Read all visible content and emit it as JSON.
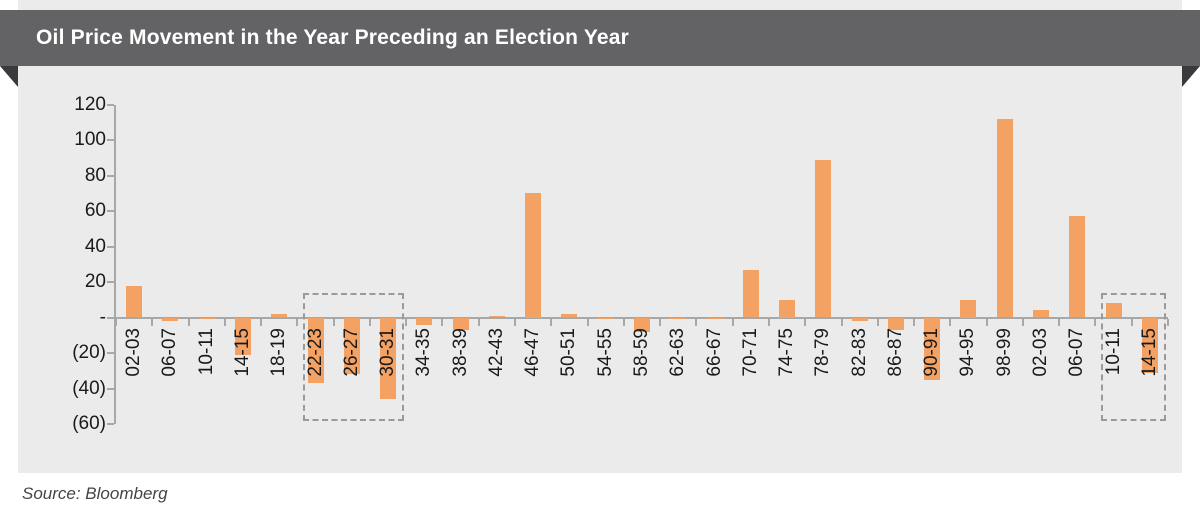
{
  "banner": {
    "title": "Oil Price Movement in the Year Preceding an Election Year"
  },
  "source": {
    "text": "Source: Bloomberg"
  },
  "colors": {
    "bar": "#F4A264",
    "panel_bg": "#EBEBEB",
    "page_bg": "#FFFFFF",
    "banner_bg": "#636366",
    "banner_text": "#FFFFFF",
    "fold": "#3A3A3C",
    "axis": "#A8A8A8",
    "label": "#1A1A1A",
    "highlight_border": "#9A9A9A",
    "source_text": "#454545"
  },
  "chart_data": {
    "type": "bar",
    "title": "Oil Price Movement in the Year Preceding an Election Year",
    "xlabel": "",
    "ylabel": "",
    "grid": false,
    "legend": false,
    "ylim": [
      -60,
      120
    ],
    "ytick_step": 20,
    "yticks": [
      {
        "label": "120",
        "value": 120
      },
      {
        "label": "100",
        "value": 100
      },
      {
        "label": "80",
        "value": 80
      },
      {
        "label": "60",
        "value": 60
      },
      {
        "label": "40",
        "value": 40
      },
      {
        "label": "20",
        "value": 20
      },
      {
        "label": "-",
        "value": 0
      },
      {
        "label": "(20)",
        "value": -20
      },
      {
        "label": "(40)",
        "value": -40
      },
      {
        "label": "(60)",
        "value": -60
      }
    ],
    "categories": [
      "02-03",
      "06-07",
      "10-11",
      "14-15",
      "18-19",
      "22-23",
      "26-27",
      "30-31",
      "34-35",
      "38-39",
      "42-43",
      "46-47",
      "50-51",
      "54-55",
      "58-59",
      "62-63",
      "66-67",
      "70-71",
      "74-75",
      "78-79",
      "82-83",
      "86-87",
      "90-91",
      "94-95",
      "98-99",
      "02-03",
      "06-07",
      "10-11",
      "14-15"
    ],
    "values": [
      18,
      -2,
      0,
      -21,
      2,
      -37,
      -32,
      -46,
      -4,
      -7,
      1,
      70,
      2,
      0,
      -8,
      0,
      0,
      27,
      10,
      89,
      -2,
      -7,
      -35,
      10,
      112,
      4,
      57,
      8,
      -31
    ],
    "highlight_ranges": [
      {
        "from": "22-23",
        "to": "30-31",
        "from_index": 5,
        "to_index": 7
      },
      {
        "from": "10-11",
        "to": "14-15",
        "from_index": 27,
        "to_index": 28
      }
    ]
  }
}
